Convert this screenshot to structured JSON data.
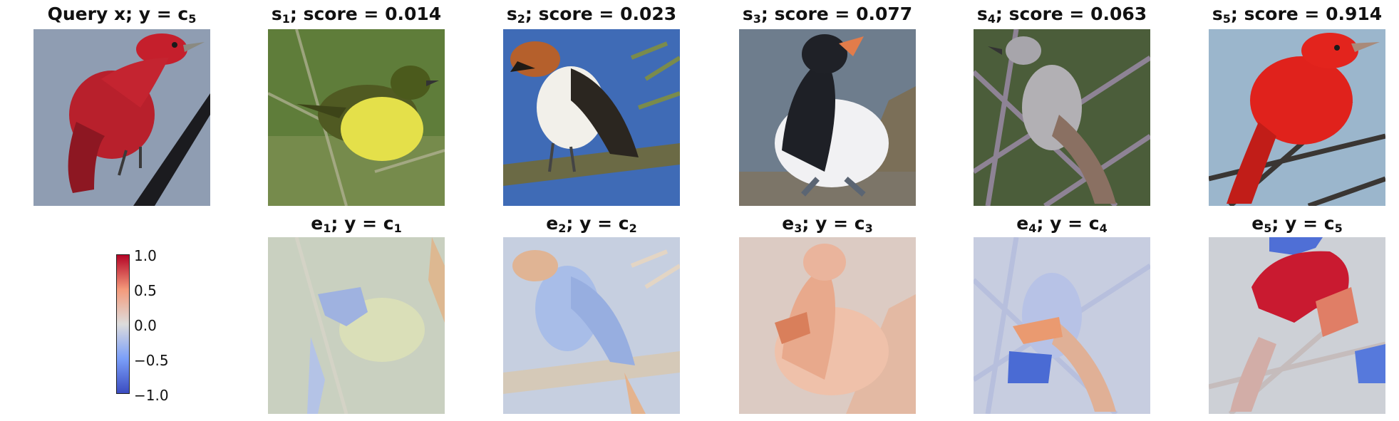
{
  "query": {
    "label_main": "Query x; y = c",
    "label_sub": "5"
  },
  "samples": [
    {
      "sym": "s",
      "idx": "1",
      "text": "; score = 0.014"
    },
    {
      "sym": "s",
      "idx": "2",
      "text": "; score = 0.023"
    },
    {
      "sym": "s",
      "idx": "3",
      "text": "; score = 0.077"
    },
    {
      "sym": "s",
      "idx": "4",
      "text": "; score = 0.063"
    },
    {
      "sym": "s",
      "idx": "5",
      "text": "; score = 0.914"
    }
  ],
  "explanations": [
    {
      "sym": "e",
      "idx": "1",
      "text": "; y = c",
      "cls": "1"
    },
    {
      "sym": "e",
      "idx": "2",
      "text": "; y = c",
      "cls": "2"
    },
    {
      "sym": "e",
      "idx": "3",
      "text": "; y = c",
      "cls": "3"
    },
    {
      "sym": "e",
      "idx": "4",
      "text": "; y = c",
      "cls": "4"
    },
    {
      "sym": "e",
      "idx": "5",
      "text": "; y = c",
      "cls": "5"
    }
  ],
  "colorbar": {
    "ticks": [
      "1.0",
      "0.5",
      "0.0",
      "−0.5",
      "−1.0"
    ],
    "colormap": "coolwarm",
    "colors": {
      "top": "#b40426",
      "upper": "#f49a7b",
      "middle": "#dddcdc",
      "lower": "#7b9ff9",
      "bottom": "#3b4cc0"
    }
  }
}
